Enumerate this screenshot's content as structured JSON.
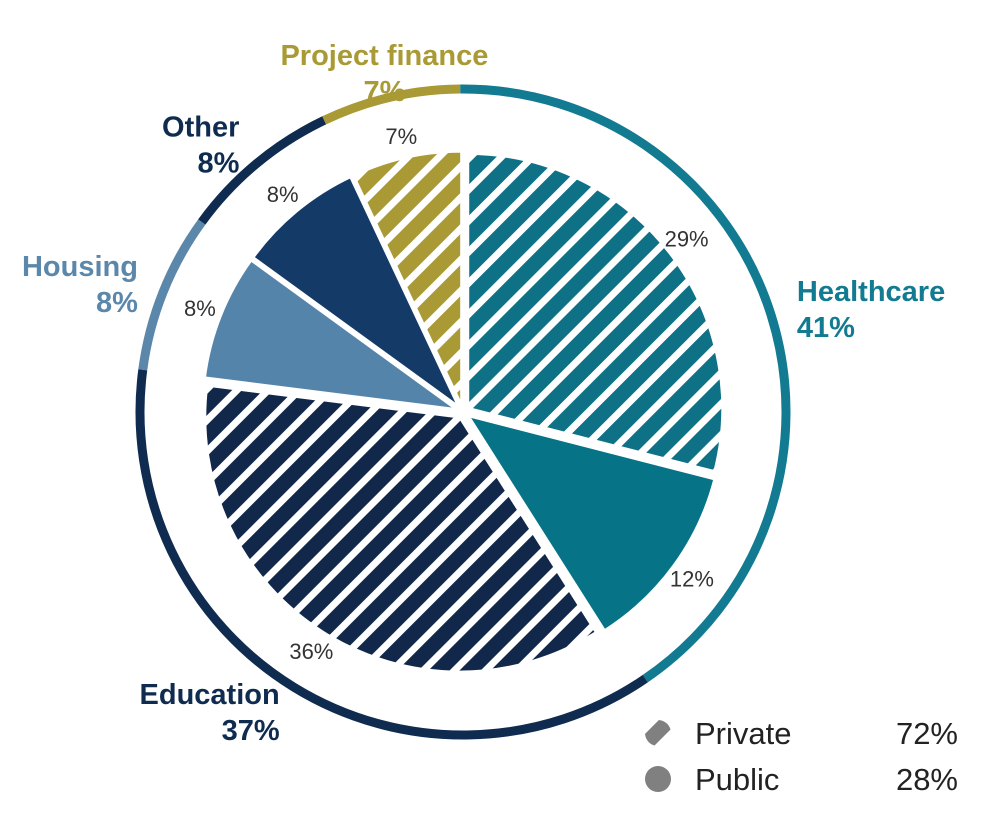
{
  "chart_data": {
    "type": "pie",
    "categories": [
      {
        "name": "Healthcare",
        "value": 41,
        "label": "41%",
        "color": "#127a91"
      },
      {
        "name": "Education",
        "value": 37,
        "label": "37%",
        "color": "#0f2c50"
      },
      {
        "name": "Housing",
        "value": 8,
        "label": "8%",
        "color": "#5b87aa"
      },
      {
        "name": "Other",
        "value": 8,
        "label": "8%",
        "color": "#0f2c50"
      },
      {
        "name": "Project finance",
        "value": 7,
        "label": "7%",
        "color": "#a99a35"
      }
    ],
    "slices": [
      {
        "category": "Healthcare",
        "type": "Private",
        "value": 29,
        "label": "29%",
        "color": "#0e7186"
      },
      {
        "category": "Healthcare",
        "type": "Public",
        "value": 12,
        "label": "12%",
        "color": "#077387"
      },
      {
        "category": "Education",
        "type": "Private",
        "value": 36,
        "label": "36%",
        "color": "#12284b"
      },
      {
        "category": "Housing",
        "type": "Public",
        "value": 8,
        "label": "8%",
        "color": "#5584aa"
      },
      {
        "category": "Other",
        "type": "Public",
        "value": 8,
        "label": "8%",
        "color": "#143b68"
      },
      {
        "category": "Project finance",
        "type": "Private",
        "value": 7,
        "label": "7%",
        "color": "#a99a35"
      }
    ],
    "legend": [
      {
        "name": "Private",
        "value": "72%",
        "style": "hatched"
      },
      {
        "name": "Public",
        "value": "28%",
        "style": "solid"
      }
    ],
    "legend_color": "#808080",
    "legend_placement": "bottom-right"
  }
}
